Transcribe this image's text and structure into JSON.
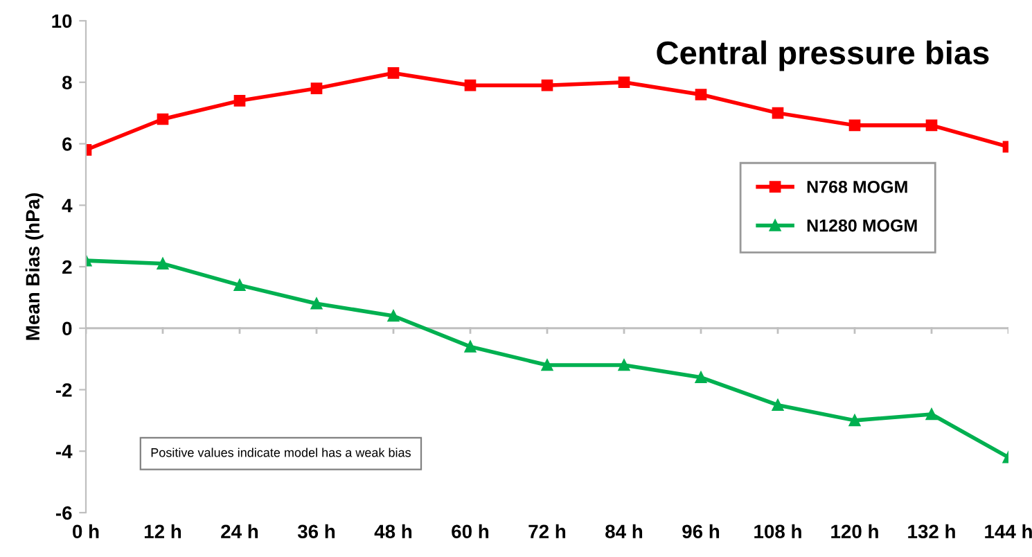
{
  "chart_data": {
    "type": "line",
    "title": "Central pressure bias",
    "ylabel": "Mean Bias (hPa)",
    "categories": [
      "0 h",
      "12 h",
      "24 h",
      "36 h",
      "48 h",
      "60 h",
      "72 h",
      "84 h",
      "96 h",
      "108 h",
      "120 h",
      "132 h",
      "144 h"
    ],
    "series": [
      {
        "name": "N768 MOGM",
        "color": "#ff0000",
        "marker": "square",
        "values": [
          5.8,
          6.8,
          7.4,
          7.8,
          8.3,
          7.9,
          7.9,
          8.0,
          7.6,
          7.0,
          6.6,
          6.6,
          5.9
        ]
      },
      {
        "name": "N1280 MOGM",
        "color": "#00b050",
        "marker": "triangle",
        "values": [
          2.2,
          2.1,
          1.4,
          0.8,
          0.4,
          -0.6,
          -1.2,
          -1.2,
          -1.6,
          -2.5,
          -3.0,
          -2.8,
          -4.2
        ]
      }
    ],
    "ylim": [
      -6,
      10
    ],
    "yticks": [
      -6,
      -4,
      -2,
      0,
      2,
      4,
      6,
      8,
      10
    ],
    "grid": false,
    "legend": "right",
    "ref_lines": [
      {
        "axis": "y",
        "value": 0,
        "color": "#bfbfbf"
      }
    ],
    "annotations": [
      "Positive values indicate model has a weak bias"
    ]
  }
}
